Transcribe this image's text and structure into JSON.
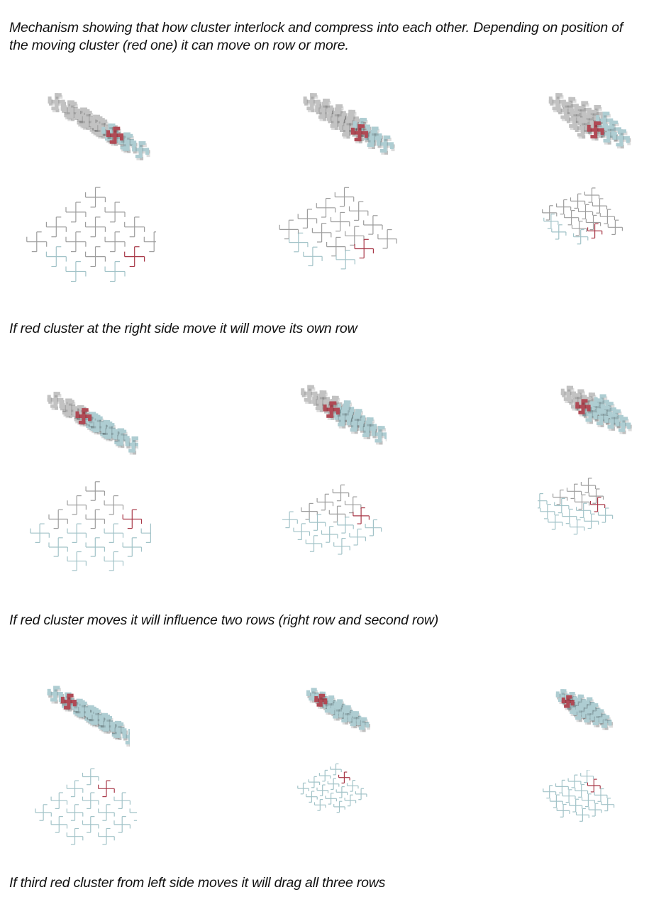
{
  "intro": "Mechanism showing that how cluster interlock and compress into each other. Depending on position of the moving cluster (red one) it can move on row or more.",
  "colors": {
    "grey_cluster": "#c2c2c2",
    "blue_cluster": "#aecdd2",
    "red_cluster": "#b04a55",
    "grey_outline": "#9d9d9d",
    "blue_outline": "#a2c3c8",
    "red_outline": "#a83848"
  },
  "rows": [
    {
      "caption": "If red cluster at the right side move it will move its own row",
      "panels": [
        {
          "step": "initial",
          "compression": 0
        },
        {
          "step": "moving",
          "compression": 0.5
        },
        {
          "step": "compressed",
          "compression": 1
        }
      ]
    },
    {
      "caption": "If red cluster moves it will influence two rows (right row and second row)",
      "panels": [
        {
          "step": "initial",
          "compression": 0
        },
        {
          "step": "moving",
          "compression": 0.5
        },
        {
          "step": "compressed",
          "compression": 1
        }
      ]
    },
    {
      "caption": "If third red cluster from left side moves it will drag all three rows",
      "panels": [
        {
          "step": "initial",
          "compression": 0
        },
        {
          "step": "moving",
          "compression": 0.5
        },
        {
          "step": "compressed",
          "compression": 1
        }
      ]
    }
  ]
}
